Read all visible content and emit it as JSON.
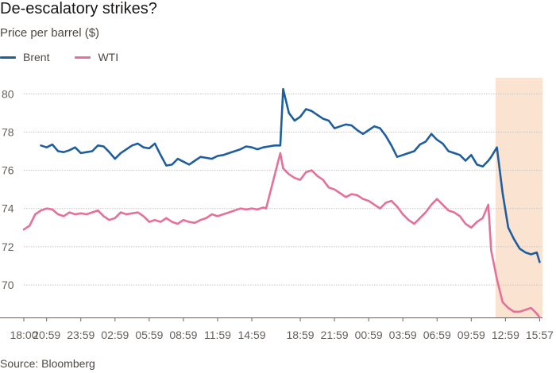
{
  "header": {
    "title": "De-escalatory strikes?",
    "subtitle": "Price per barrel ($)"
  },
  "footer": {
    "source": "Source: Bloomberg"
  },
  "chart_data": {
    "type": "line",
    "title": "De-escalatory strikes?",
    "ylabel": "Price per barrel ($)",
    "xlabel": "",
    "ylim": [
      68.3,
      80.8
    ],
    "yticks": [
      70,
      72,
      74,
      76,
      78,
      80
    ],
    "grid": true,
    "legend_position": "top-left",
    "x_tick_labels": [
      "18:00",
      "20:59",
      "23:59",
      "02:59",
      "05:59",
      "08:59",
      "11:59",
      "14:59",
      "18:59",
      "21:59",
      "00:59",
      "03:59",
      "06:59",
      "09:59",
      "12:59",
      "15:57"
    ],
    "x_tick_index": [
      0,
      8,
      20,
      32,
      44,
      56,
      68,
      80,
      97,
      109,
      121,
      133,
      145,
      157,
      169,
      181
    ],
    "x_index_range": [
      0,
      182
    ],
    "highlight": {
      "index_range": [
        165.5,
        182
      ],
      "color": "#fbe3d1"
    },
    "colors": {
      "Brent": "#1f5e9e",
      "WTI": "#e5709a"
    },
    "series": [
      {
        "name": "Brent",
        "x": [
          6,
          8,
          10,
          12,
          14,
          16,
          18,
          20,
          22,
          24,
          26,
          28,
          30,
          32,
          34,
          36,
          38,
          40,
          42,
          44,
          46,
          48,
          50,
          52,
          54,
          56,
          58,
          60,
          62,
          64,
          66,
          68,
          70,
          72,
          74,
          76,
          78,
          80,
          82,
          84,
          86,
          88,
          90,
          91,
          93,
          95,
          97,
          99,
          101,
          103,
          105,
          107,
          109,
          111,
          113,
          115,
          117,
          119,
          121,
          123,
          125,
          127,
          129,
          131,
          133,
          135,
          137,
          139,
          141,
          143,
          145,
          147,
          149,
          151,
          153,
          155,
          157,
          159,
          161,
          163,
          164,
          166,
          168,
          170,
          172,
          174,
          176,
          178,
          180,
          181
        ],
        "values": [
          77.3,
          77.2,
          77.35,
          77.0,
          76.95,
          77.05,
          77.2,
          76.9,
          76.95,
          77.0,
          77.3,
          77.25,
          76.95,
          76.6,
          76.9,
          77.1,
          77.3,
          77.4,
          77.2,
          77.15,
          77.4,
          76.8,
          76.25,
          76.3,
          76.6,
          76.45,
          76.3,
          76.5,
          76.7,
          76.65,
          76.6,
          76.75,
          76.8,
          76.9,
          77.0,
          77.1,
          77.25,
          77.2,
          77.1,
          77.2,
          77.25,
          77.3,
          77.3,
          80.25,
          79.0,
          78.6,
          78.8,
          79.2,
          79.1,
          78.9,
          78.7,
          78.6,
          78.2,
          78.3,
          78.4,
          78.35,
          78.1,
          77.9,
          78.1,
          78.3,
          78.2,
          77.8,
          77.3,
          76.7,
          76.8,
          76.9,
          77.0,
          77.35,
          77.5,
          77.9,
          77.6,
          77.4,
          77.0,
          76.9,
          76.8,
          76.5,
          76.8,
          76.3,
          76.2,
          76.5,
          76.7,
          77.2,
          74.8,
          73.0,
          72.4,
          71.9,
          71.7,
          71.6,
          71.7,
          71.2
        ]
      },
      {
        "name": "WTI",
        "x": [
          0,
          2,
          4,
          6,
          8,
          10,
          12,
          14,
          16,
          18,
          20,
          22,
          24,
          26,
          28,
          30,
          32,
          34,
          36,
          38,
          40,
          42,
          44,
          46,
          48,
          50,
          52,
          54,
          56,
          58,
          60,
          62,
          64,
          66,
          68,
          70,
          72,
          74,
          76,
          78,
          80,
          82,
          84,
          85,
          90,
          91,
          93,
          95,
          97,
          99,
          101,
          103,
          105,
          107,
          109,
          111,
          113,
          115,
          117,
          119,
          121,
          123,
          125,
          127,
          129,
          131,
          133,
          135,
          137,
          139,
          141,
          143,
          145,
          147,
          149,
          151,
          153,
          155,
          157,
          159,
          161,
          163,
          164,
          166,
          168,
          170,
          172,
          174,
          176,
          178,
          180,
          181
        ],
        "values": [
          72.9,
          73.1,
          73.7,
          73.9,
          74.0,
          73.95,
          73.7,
          73.6,
          73.8,
          73.7,
          73.75,
          73.7,
          73.8,
          73.9,
          73.6,
          73.4,
          73.5,
          73.8,
          73.7,
          73.75,
          73.8,
          73.6,
          73.3,
          73.4,
          73.3,
          73.5,
          73.3,
          73.2,
          73.4,
          73.3,
          73.25,
          73.4,
          73.5,
          73.7,
          73.6,
          73.7,
          73.8,
          73.9,
          74.0,
          73.95,
          74.0,
          73.95,
          74.05,
          74.0,
          76.9,
          76.1,
          75.8,
          75.6,
          75.5,
          75.9,
          76.0,
          75.7,
          75.5,
          75.1,
          75.0,
          74.8,
          74.6,
          74.75,
          74.7,
          74.5,
          74.4,
          74.2,
          74.0,
          74.3,
          74.4,
          74.1,
          73.7,
          73.4,
          73.2,
          73.5,
          73.8,
          74.2,
          74.5,
          74.2,
          73.9,
          73.8,
          73.6,
          73.2,
          73.0,
          73.3,
          73.5,
          74.2,
          71.8,
          70.3,
          69.1,
          68.8,
          68.6,
          68.6,
          68.7,
          68.8,
          68.5,
          68.3
        ]
      }
    ]
  }
}
